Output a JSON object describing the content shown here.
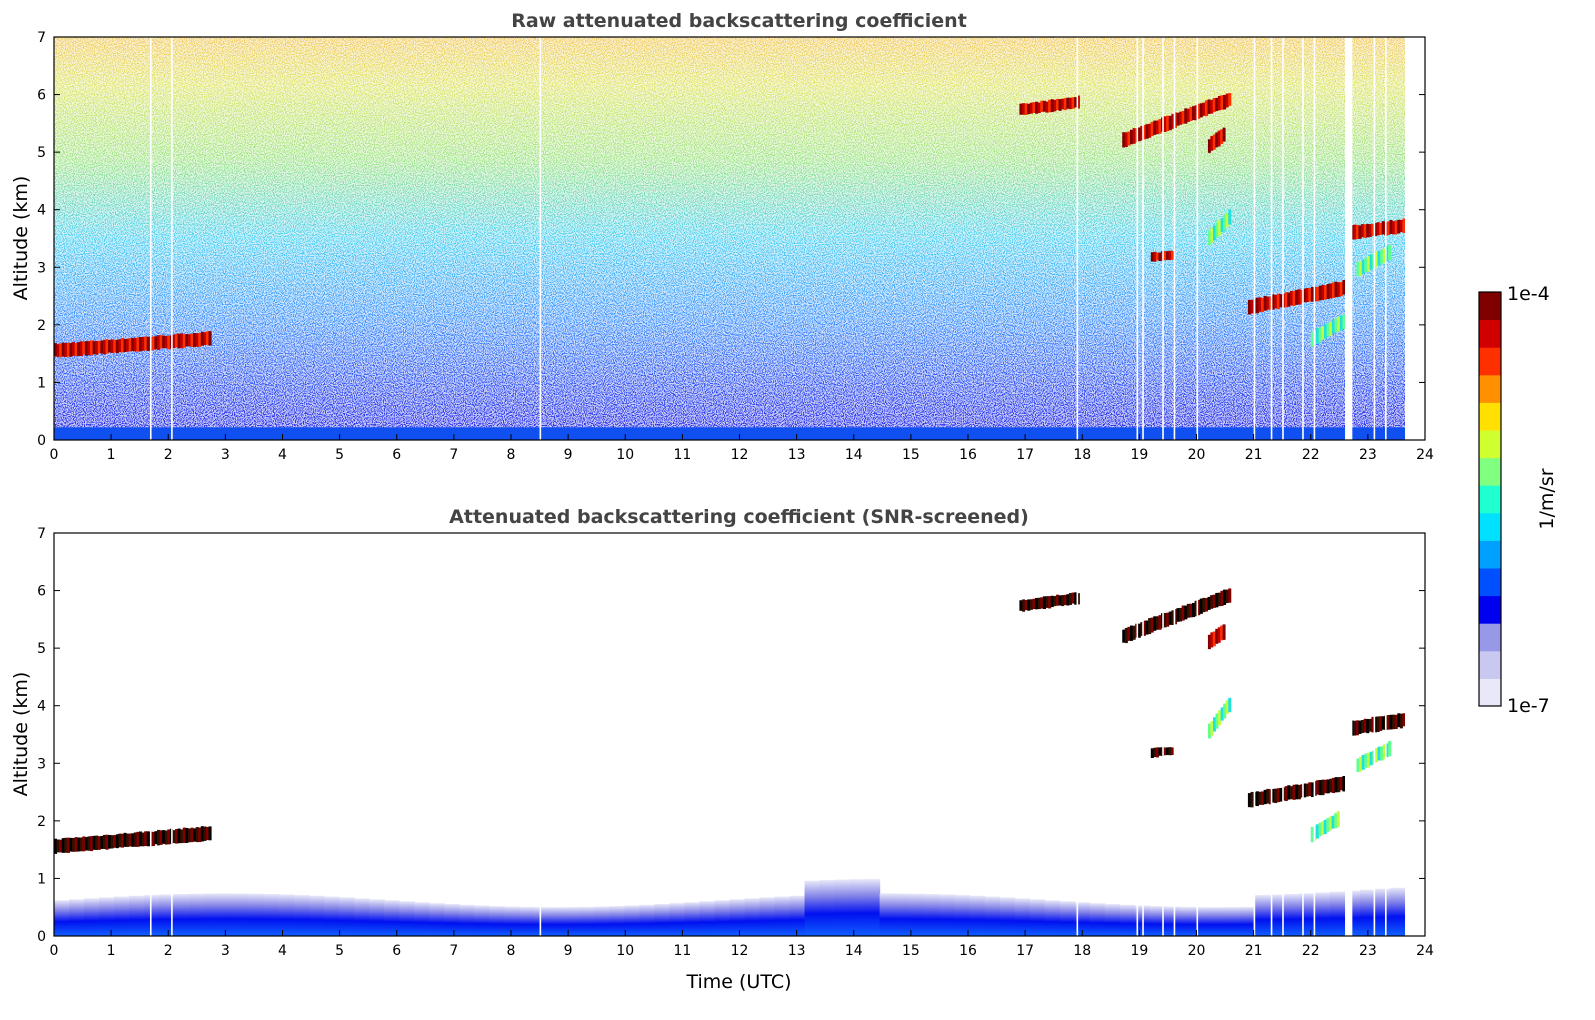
{
  "chart_data": [
    {
      "type": "heatmap",
      "title": "Raw attenuated backscattering coefficient",
      "xlabel": "",
      "ylabel": "Altitude (km)",
      "xlim": [
        0,
        24
      ],
      "ylim": [
        0,
        7
      ],
      "xticks": [
        "0",
        "1",
        "2",
        "3",
        "4",
        "5",
        "6",
        "7",
        "8",
        "9",
        "10",
        "11",
        "12",
        "13",
        "14",
        "15",
        "16",
        "17",
        "18",
        "19",
        "20",
        "21",
        "22",
        "23",
        "24"
      ],
      "yticks": [
        "0",
        "1",
        "2",
        "3",
        "4",
        "5",
        "6",
        "7"
      ],
      "data_end_time": 23.65,
      "background": "noisy",
      "data_gaps": [
        1.68,
        2.05,
        8.5,
        17.9,
        18.95,
        19.05,
        19.4,
        19.6,
        20.0,
        21.0,
        21.3,
        21.5,
        21.85,
        22.05,
        22.7,
        23.1,
        23.3
      ],
      "wide_gap": [
        22.6,
        22.72
      ],
      "features": [
        {
          "kind": "cloud",
          "x0": 0.0,
          "x1": 2.75,
          "y0": 1.45,
          "y1": 1.7,
          "level": "high"
        },
        {
          "kind": "cloud",
          "x0": 16.9,
          "x1": 17.95,
          "y0": 5.65,
          "y1": 5.82,
          "level": "high"
        },
        {
          "kind": "cloud",
          "x0": 18.7,
          "x1": 20.6,
          "y0": 5.1,
          "y1": 5.95,
          "level": "high"
        },
        {
          "kind": "cloud",
          "x0": 20.2,
          "x1": 20.5,
          "y0": 5.0,
          "y1": 5.45,
          "level": "high"
        },
        {
          "kind": "cloud",
          "x0": 20.2,
          "x1": 20.6,
          "y0": 3.4,
          "y1": 4.2,
          "level": "medium"
        },
        {
          "kind": "cloud",
          "x0": 19.2,
          "x1": 19.6,
          "y0": 3.12,
          "y1": 3.2,
          "level": "high"
        },
        {
          "kind": "cloud",
          "x0": 20.9,
          "x1": 22.6,
          "y0": 2.2,
          "y1": 2.6,
          "level": "high"
        },
        {
          "kind": "cloud",
          "x0": 22.0,
          "x1": 22.6,
          "y0": 1.65,
          "y1": 2.3,
          "level": "medium"
        },
        {
          "kind": "cloud",
          "x0": 22.7,
          "x1": 23.65,
          "y0": 3.5,
          "y1": 3.75,
          "level": "high"
        },
        {
          "kind": "cloud",
          "x0": 22.8,
          "x1": 23.4,
          "y0": 2.85,
          "y1": 3.5,
          "level": "medium"
        }
      ]
    },
    {
      "type": "heatmap",
      "title": "Attenuated backscattering coefficient (SNR-screened)",
      "xlabel": "Time (UTC)",
      "ylabel": "Altitude (km)",
      "xlim": [
        0,
        24
      ],
      "ylim": [
        0,
        7
      ],
      "xticks": [
        "0",
        "1",
        "2",
        "3",
        "4",
        "5",
        "6",
        "7",
        "8",
        "9",
        "10",
        "11",
        "12",
        "13",
        "14",
        "15",
        "16",
        "17",
        "18",
        "19",
        "20",
        "21",
        "22",
        "23",
        "24"
      ],
      "yticks": [
        "0",
        "1",
        "2",
        "3",
        "4",
        "5",
        "6",
        "7"
      ],
      "data_end_time": 23.65,
      "background": "screened",
      "data_gaps": [
        1.68,
        2.05,
        8.5,
        17.9,
        18.95,
        19.05,
        19.4,
        19.6,
        20.0,
        21.0,
        21.3,
        21.5,
        21.85,
        22.05,
        22.7,
        23.1,
        23.3
      ],
      "wide_gap": [
        22.6,
        22.72
      ],
      "features": [
        {
          "kind": "cloud",
          "x0": 0.0,
          "x1": 2.75,
          "y0": 1.45,
          "y1": 1.72,
          "level": "saturated"
        },
        {
          "kind": "cloud",
          "x0": 16.9,
          "x1": 17.95,
          "y0": 5.65,
          "y1": 5.82,
          "level": "saturated"
        },
        {
          "kind": "cloud",
          "x0": 18.7,
          "x1": 20.6,
          "y0": 5.1,
          "y1": 5.95,
          "level": "saturated"
        },
        {
          "kind": "cloud",
          "x0": 20.2,
          "x1": 20.5,
          "y0": 5.0,
          "y1": 5.4,
          "level": "high"
        },
        {
          "kind": "cloud",
          "x0": 20.2,
          "x1": 20.6,
          "y0": 3.45,
          "y1": 4.5,
          "level": "medium"
        },
        {
          "kind": "cloud",
          "x0": 19.2,
          "x1": 19.6,
          "y0": 3.12,
          "y1": 3.2,
          "level": "saturated"
        },
        {
          "kind": "cloud",
          "x0": 20.9,
          "x1": 22.6,
          "y0": 2.25,
          "y1": 2.6,
          "level": "saturated"
        },
        {
          "kind": "cloud",
          "x0": 22.0,
          "x1": 22.5,
          "y0": 1.65,
          "y1": 2.25,
          "level": "medium"
        },
        {
          "kind": "cloud",
          "x0": 22.7,
          "x1": 23.65,
          "y0": 3.5,
          "y1": 3.8,
          "level": "saturated"
        },
        {
          "kind": "cloud",
          "x0": 22.8,
          "x1": 23.4,
          "y0": 2.85,
          "y1": 3.5,
          "level": "medium"
        }
      ]
    }
  ],
  "colorbar": {
    "label": "1/m/sr",
    "max_label": "1e-4",
    "min_label": "1e-7",
    "colors": [
      "#e8e8f8",
      "#c8c8f0",
      "#9898e8",
      "#0000f0",
      "#0050ff",
      "#00a0ff",
      "#00e0ff",
      "#20ffd0",
      "#80ff80",
      "#d0ff30",
      "#ffe000",
      "#ff9000",
      "#ff3000",
      "#d00000",
      "#800000"
    ]
  }
}
